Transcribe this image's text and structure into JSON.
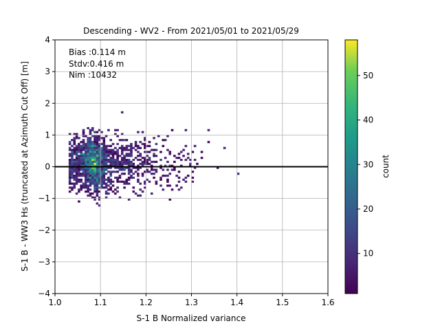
{
  "chart_data": {
    "type": "heatmap",
    "title": "Descending - WV2 - From 2021/05/01 to 2021/05/29",
    "xlabel": "S-1 B Normalized variance",
    "ylabel": "S-1 B - WW3 Hs (truncated at Azimuth Cut Off) [m]",
    "xlim": [
      1.0,
      1.6
    ],
    "ylim": [
      -4,
      4
    ],
    "xticks": [
      "1.0",
      "1.1",
      "1.2",
      "1.3",
      "1.4",
      "1.5",
      "1.6"
    ],
    "yticks": [
      "4",
      "3",
      "2",
      "1",
      "0",
      "−1",
      "−2",
      "−3",
      "−4"
    ],
    "grid": true,
    "reference_line_y": 0,
    "annotations": [
      "Bias :0.114 m",
      "Stdv:0.416 m",
      "Nim :10432"
    ],
    "colorbar": {
      "label": "count",
      "range": [
        1,
        58
      ],
      "ticks": [
        "10",
        "20",
        "30",
        "40",
        "50"
      ],
      "colormap": "viridis"
    },
    "density_peak": {
      "x": 1.085,
      "y": 0.2,
      "count": 58
    }
  }
}
